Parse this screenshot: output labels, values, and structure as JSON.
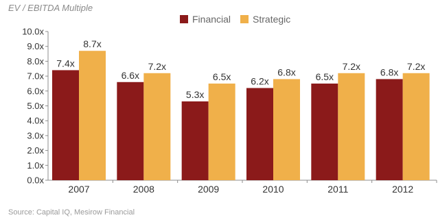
{
  "chart_data": {
    "type": "bar",
    "ylabel": "EV / EBITDA Multiple",
    "source": "Source: Capital IQ, Mesirow Financial",
    "categories": [
      "2007",
      "2008",
      "2009",
      "2010",
      "2011",
      "2012"
    ],
    "series": [
      {
        "name": "Financial",
        "color": "#8b1a1a",
        "values": [
          7.4,
          6.6,
          5.3,
          6.2,
          6.5,
          6.8
        ]
      },
      {
        "name": "Strategic",
        "color": "#f0b04a",
        "values": [
          8.7,
          7.2,
          6.5,
          6.8,
          7.2,
          7.2
        ]
      }
    ],
    "data_labels": [
      [
        "7.4x",
        "6.6x",
        "5.3x",
        "6.2x",
        "6.5x",
        "6.8x"
      ],
      [
        "8.7x",
        "7.2x",
        "6.5x",
        "6.8x",
        "7.2x",
        "7.2x"
      ]
    ],
    "ylim": [
      0,
      10
    ],
    "yticks": [
      "0.0x",
      "1.0x",
      "2.0x",
      "3.0x",
      "4.0x",
      "5.0x",
      "6.0x",
      "7.0x",
      "8.0x",
      "9.0x",
      "10.0x"
    ],
    "grid": false,
    "legend_position": "top-center"
  }
}
